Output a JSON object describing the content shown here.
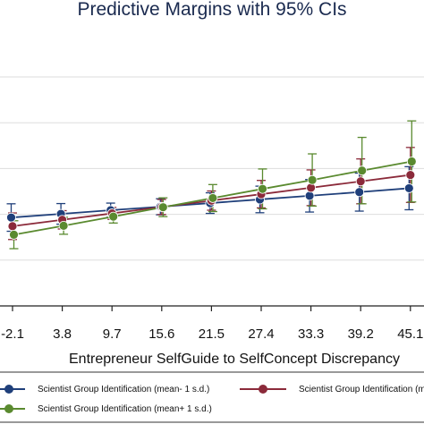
{
  "chart_data": {
    "type": "line",
    "title": "Predictive Margins with 95% CIs",
    "xlabel": "Entrepreneur SelfGuide to SelfConcept Discrepancy",
    "ylabel": "",
    "x": [
      -2.1,
      3.8,
      9.7,
      15.6,
      21.5,
      27.4,
      33.3,
      39.2,
      45.1
    ],
    "tick_labels": [
      "-2.1",
      "3.8",
      "9.7",
      "15.6",
      "21.5",
      "27.4",
      "33.3",
      "39.2",
      "45.1"
    ],
    "ylim": [
      0,
      1
    ],
    "grid": true,
    "legend_position": "bottom",
    "series": [
      {
        "name": "Scientist Group Identification (mean- 1 s.d.)",
        "color": "#1f3f7a",
        "values": [
          0.386,
          0.402,
          0.418,
          0.433,
          0.449,
          0.465,
          0.481,
          0.497,
          0.514
        ],
        "lower": [
          0.326,
          0.357,
          0.387,
          0.398,
          0.404,
          0.407,
          0.41,
          0.414,
          0.42
        ],
        "upper": [
          0.446,
          0.447,
          0.449,
          0.468,
          0.494,
          0.523,
          0.552,
          0.58,
          0.608
        ]
      },
      {
        "name": "Scientist Group Identification (mean)",
        "color": "#8b2a3a",
        "values": [
          0.348,
          0.376,
          0.404,
          0.432,
          0.46,
          0.488,
          0.516,
          0.544,
          0.572
        ],
        "lower": [
          0.29,
          0.336,
          0.378,
          0.399,
          0.418,
          0.428,
          0.438,
          0.446,
          0.452
        ],
        "upper": [
          0.406,
          0.416,
          0.43,
          0.465,
          0.502,
          0.548,
          0.594,
          0.642,
          0.692
        ]
      },
      {
        "name": "Scientist Group Identification (mean+ 1 s.d.)",
        "color": "#5a8a2f",
        "values": [
          0.311,
          0.35,
          0.39,
          0.431,
          0.471,
          0.511,
          0.55,
          0.591,
          0.631
        ],
        "lower": [
          0.25,
          0.313,
          0.362,
          0.39,
          0.412,
          0.424,
          0.436,
          0.446,
          0.454
        ],
        "upper": [
          0.372,
          0.387,
          0.418,
          0.472,
          0.53,
          0.598,
          0.664,
          0.736,
          0.808
        ]
      }
    ]
  }
}
